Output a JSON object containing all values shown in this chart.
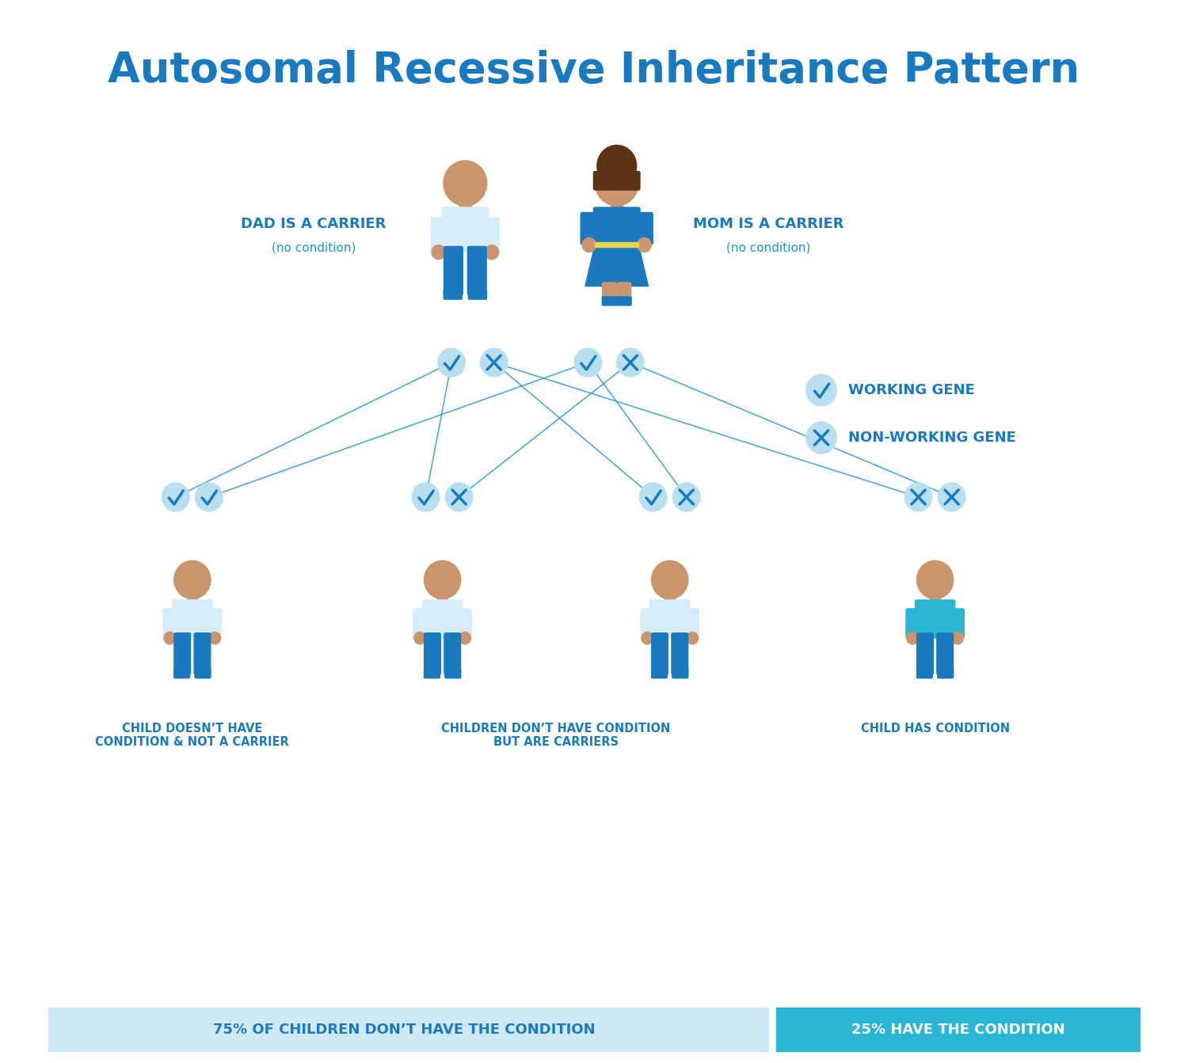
{
  "title": "Autosomal Recessive Inheritance Pattern",
  "title_color": "#1a7abf",
  "title_fontsize": 38,
  "bg_color": "#ffffff",
  "blue_dark": "#1a7abf",
  "blue_mid": "#2196c8",
  "blue_light": "#b8dff0",
  "blue_cyan": "#29b6d5",
  "blue_very_light": "#d9eef8",
  "skin_color": "#c8956c",
  "white": "#ffffff",
  "dad_label": "DAD IS A CARRIER",
  "dad_sublabel": "(no condition)",
  "mom_label": "MOM IS A CARRIER",
  "mom_sublabel": "(no condition)",
  "working_gene_label": "WORKING GENE",
  "nonworking_gene_label": "NON-WORKING GENE",
  "child1_label": "CHILD DOESN’T HAVE\nCONDITION & NOT A CARRIER",
  "child2_label": "CHILDREN DON’T HAVE CONDITION\nBUT ARE CARRIERS",
  "child3_label": "CHILD HAS CONDITION",
  "footer_left": "75% OF CHILDREN DON’T HAVE THE CONDITION",
  "footer_right": "25% HAVE THE CONDITION",
  "footer_left_bg": "#cee8f5",
  "footer_right_bg": "#29b6d5"
}
